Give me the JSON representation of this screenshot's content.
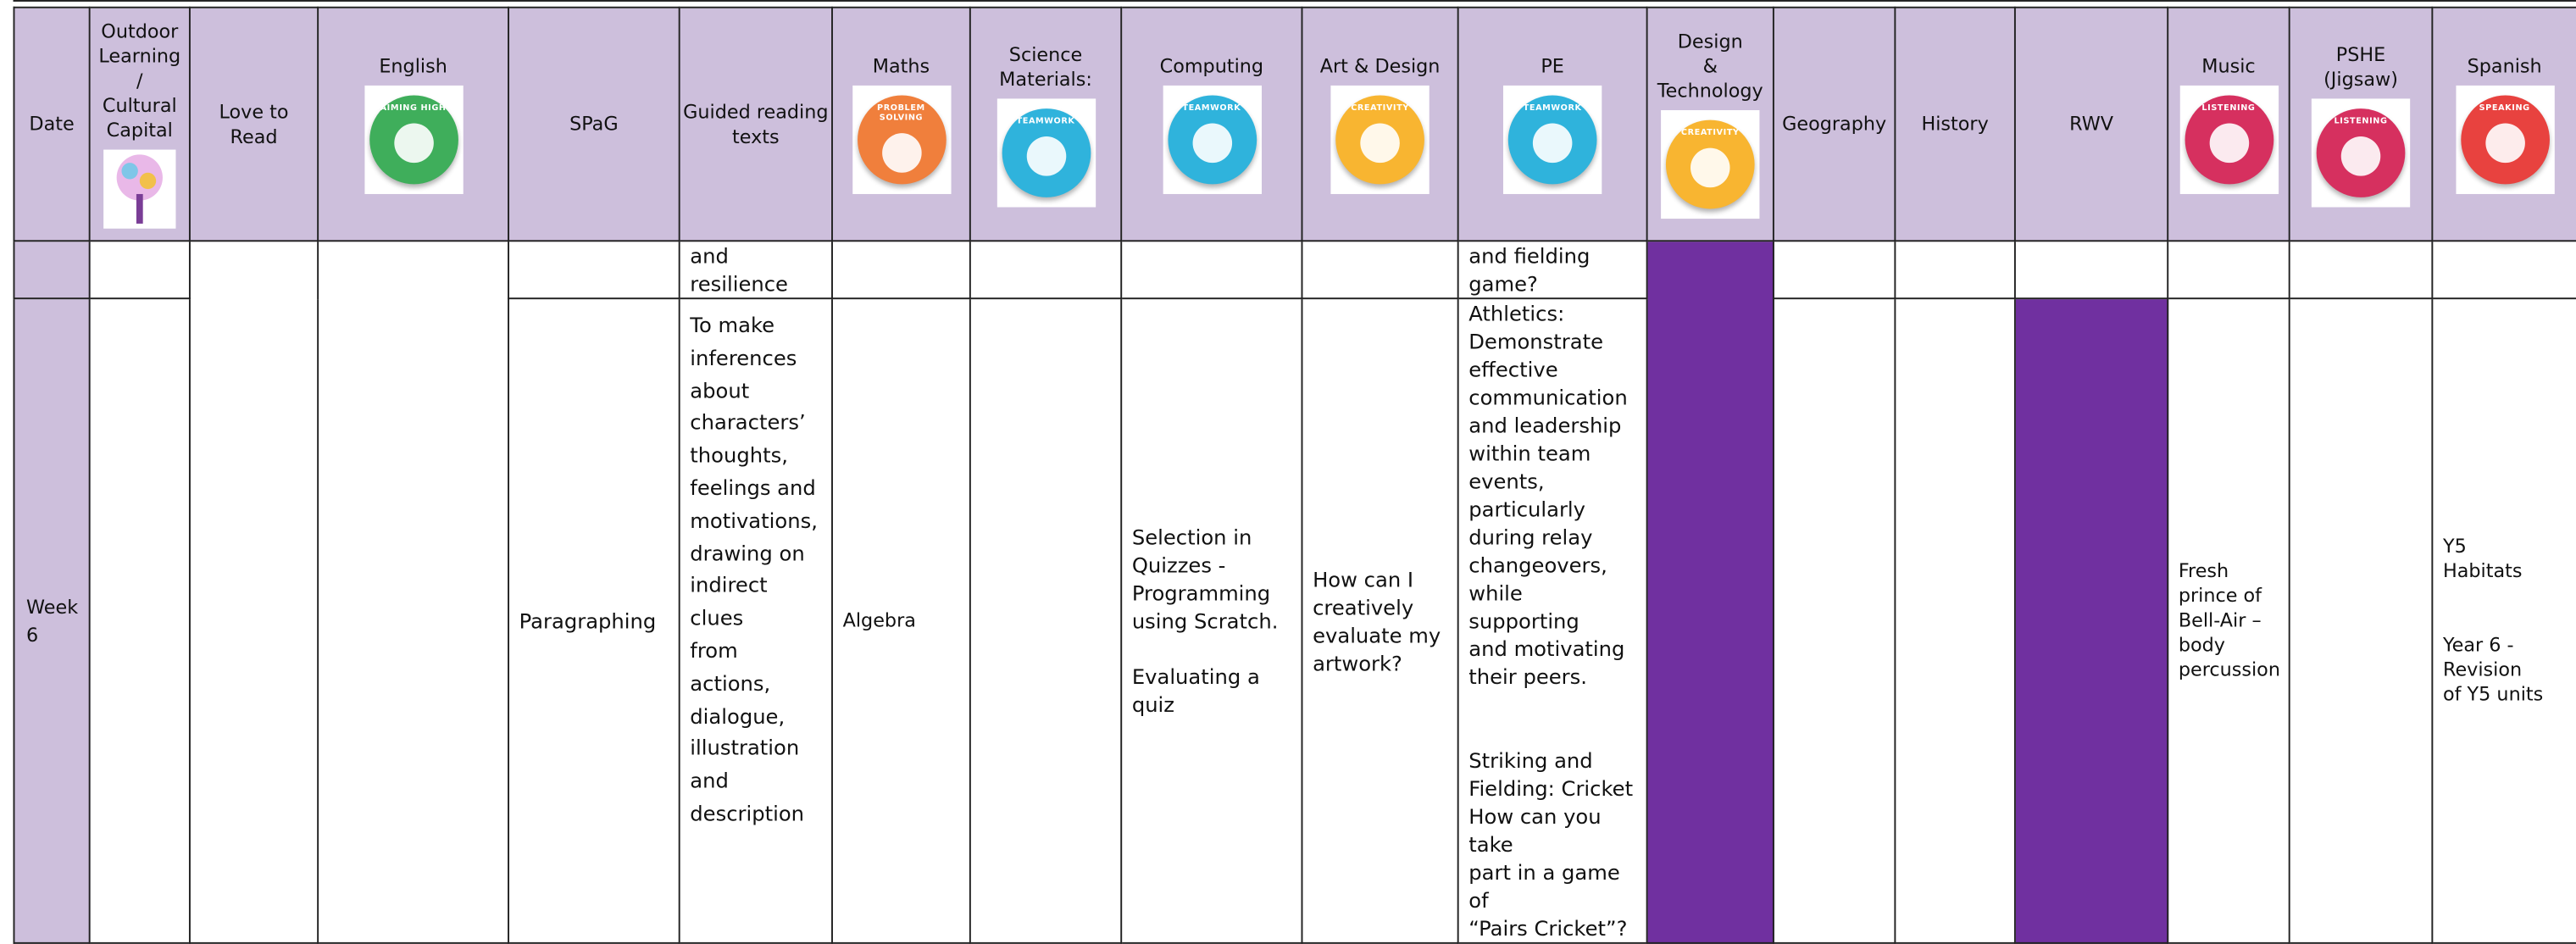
{
  "header": {
    "columns": [
      {
        "label": "Date"
      },
      {
        "label": "Outdoor\nLearning\n/\nCultural\nCapital"
      },
      {
        "label": "Love to\nRead"
      },
      {
        "label": "English",
        "icon": "AIMING HIGH"
      },
      {
        "label": "SPaG"
      },
      {
        "label": "Guided reading\ntexts"
      },
      {
        "label": "Maths",
        "icon": "PROBLEM SOLVING"
      },
      {
        "label": "Science\nMaterials:",
        "icon": "TEAMWORK"
      },
      {
        "label": "Computing",
        "icon": "TEAMWORK"
      },
      {
        "label": "Art & Design",
        "icon": "CREATIVITY"
      },
      {
        "label": "PE",
        "icon": "TEAMWORK"
      },
      {
        "label": "Design\n&\nTechnology",
        "icon": "CREATIVITY"
      },
      {
        "label": "Geography"
      },
      {
        "label": "History"
      },
      {
        "label": "RWV"
      },
      {
        "label": "Music",
        "icon": "LISTENING"
      },
      {
        "label": "PSHE\n(Jigsaw)",
        "icon": "LISTENING"
      },
      {
        "label": "Spanish",
        "icon": "SPEAKING"
      }
    ]
  },
  "rows": [
    {
      "guided": "and\nresilience",
      "pe": "and fielding\ngame?"
    },
    {
      "date": "Week\n6",
      "spag": "Paragraphing",
      "guided": "To make\ninferences\nabout\ncharacters’\nthoughts,\nfeelings and\nmotivations,\ndrawing on\nindirect clues\nfrom actions,\ndialogue,\nillustration\nand\ndescription",
      "maths": "Algebra",
      "computing": "Selection in\nQuizzes -\nProgramming\nusing Scratch.\n\nEvaluating a quiz",
      "art": "How can I\ncreatively\nevaluate my\nartwork?",
      "pe": "Athletics:\nDemonstrate\neffective\ncommunication\nand leadership\nwithin team\nevents,\nparticularly\nduring relay\nchangeovers,\nwhile supporting\nand motivating\ntheir peers.\n\n\nStriking and\nFielding: Cricket\nHow can you take\npart in a game of\n“Pairs Cricket”?",
      "music": "Fresh\nprince of\nBell-Air –\nbody\npercussion",
      "spanish": "Y5\nHabitats\n\n\nYear 6 -\nRevision\nof Y5 units"
    }
  ]
}
